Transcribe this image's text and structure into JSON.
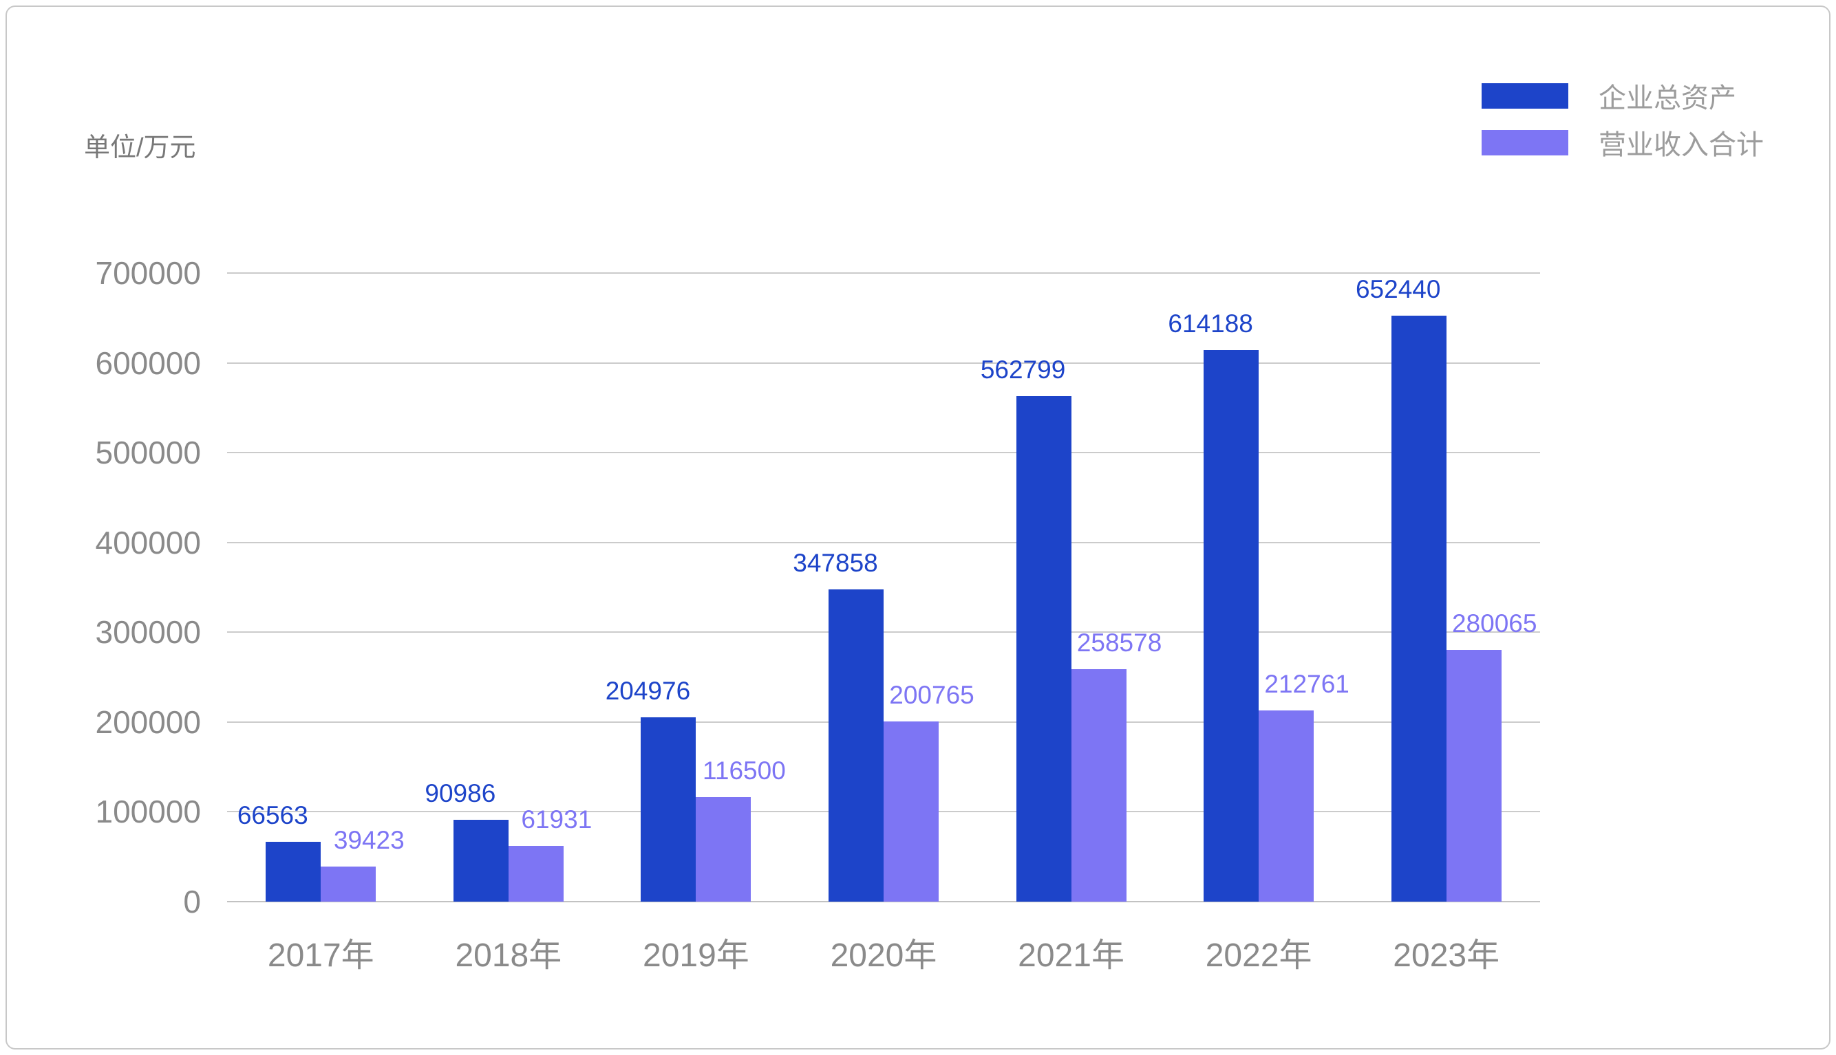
{
  "unit_label": "单位/万元",
  "colors": {
    "series1": "#1d44c9",
    "series2": "#7d75f4",
    "grid_line": "#cbcbcb",
    "axis_line": "#c2c2c2",
    "axis_text": "#8a8a8a",
    "legend_text": "#9c9c9c",
    "unit_text": "#787878",
    "border": "#c8c8c8",
    "background": "#ffffff"
  },
  "chart_data": {
    "type": "bar",
    "categories": [
      "2017年",
      "2018年",
      "2019年",
      "2020年",
      "2021年",
      "2022年",
      "2023年"
    ],
    "series": [
      {
        "name": "企业总资产",
        "values": [
          66563,
          90986,
          204976,
          347858,
          562799,
          614188,
          652440
        ]
      },
      {
        "name": "营业收入合计",
        "values": [
          39423,
          61931,
          116500,
          200765,
          258578,
          212761,
          280065
        ]
      }
    ],
    "title": "",
    "xlabel": "",
    "ylabel": "单位/万元",
    "ylim": [
      0,
      700000
    ],
    "ytick_step": 100000,
    "yticks": [
      "0",
      "100000",
      "200000",
      "300000",
      "400000",
      "500000",
      "600000",
      "700000"
    ],
    "grid": true,
    "value_labels": true,
    "legend_position": "top-right"
  }
}
